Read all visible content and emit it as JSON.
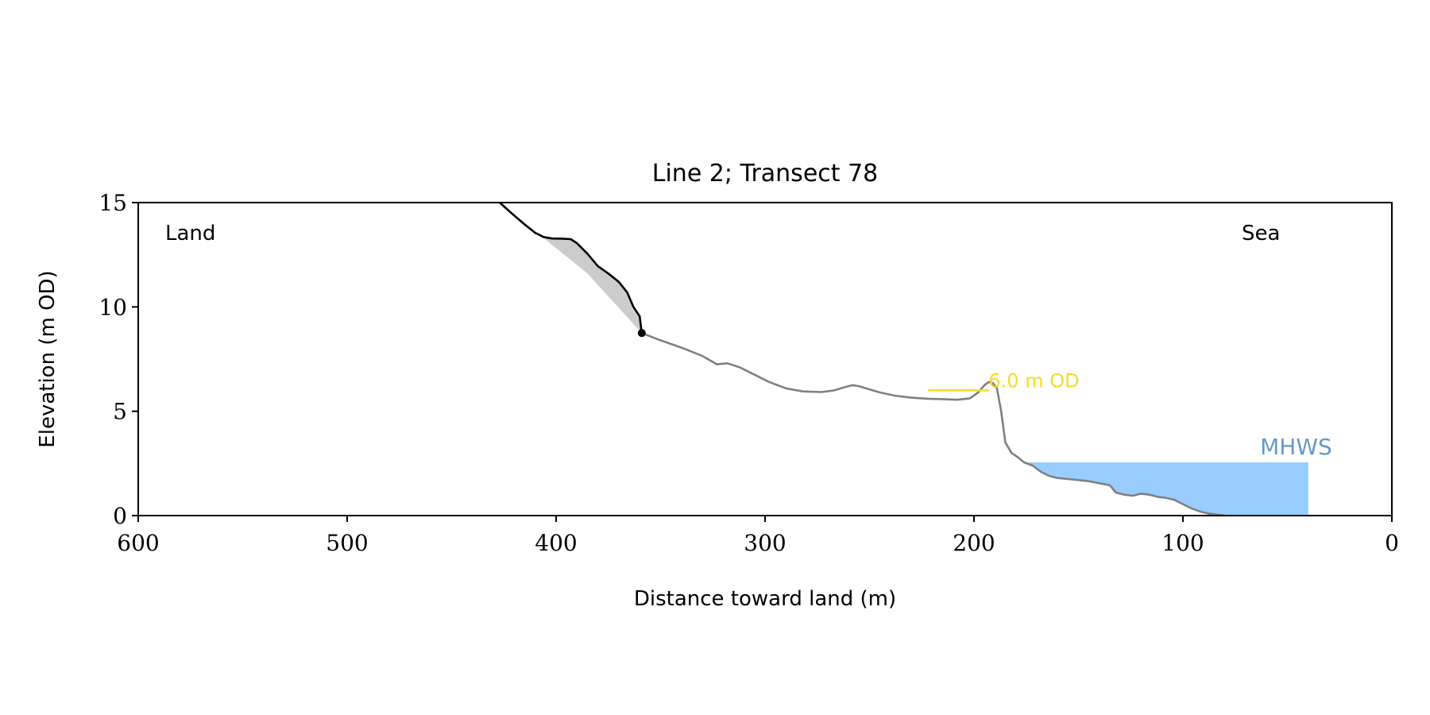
{
  "chart_data": {
    "type": "line",
    "title": "Line 2; Transect 78",
    "xlabel": "Distance toward land (m)",
    "ylabel": "Elevation (m OD)",
    "xlim": [
      600,
      0
    ],
    "ylim": [
      0,
      15
    ],
    "x_ticks": [
      600,
      500,
      400,
      300,
      200,
      100,
      0
    ],
    "x_tick_labels": [
      "600",
      "500",
      "400",
      "300",
      "200",
      "100",
      "0"
    ],
    "y_ticks": [
      0,
      5,
      10,
      15
    ],
    "y_tick_labels": [
      "0",
      "5",
      "10",
      "15"
    ],
    "grid": false,
    "annotations": {
      "land_label": "Land",
      "sea_label": "Sea",
      "contour_label": "6.0 m OD",
      "mhws_label": "MHWS"
    },
    "colors": {
      "profile": "#808080",
      "cliff": "#000000",
      "cliff_fill": "#cccccc",
      "contour": "#f5dc28",
      "mhws_fill": "#99ccff",
      "mhws_text": "#6699cc"
    },
    "mhws": {
      "elevation": 2.55,
      "x_start": 200,
      "x_end": 40
    },
    "contour_line": {
      "elevation": 6.0,
      "x_start": 222,
      "x_end": 193
    },
    "cliff_toe": {
      "x": 359,
      "y": 8.75
    },
    "cliff_profile": [
      [
        427,
        15.0
      ],
      [
        422,
        14.55
      ],
      [
        415,
        13.95
      ],
      [
        410,
        13.55
      ],
      [
        406,
        13.35
      ],
      [
        402,
        13.28
      ],
      [
        397,
        13.27
      ],
      [
        393,
        13.25
      ],
      [
        390,
        13.05
      ],
      [
        385,
        12.55
      ],
      [
        380,
        11.95
      ],
      [
        375,
        11.6
      ],
      [
        370,
        11.2
      ],
      [
        366,
        10.7
      ],
      [
        363,
        10.0
      ],
      [
        360,
        9.55
      ],
      [
        355,
        9.3
      ],
      [
        350,
        9.0
      ],
      [
        347,
        8.85
      ],
      [
        344,
        8.75
      ]
    ],
    "cliff_base": [
      [
        427,
        15.0
      ],
      [
        385,
        11.6
      ],
      [
        359,
        8.75
      ]
    ],
    "profile": [
      [
        359,
        8.75
      ],
      [
        350,
        8.4
      ],
      [
        340,
        8.05
      ],
      [
        330,
        7.65
      ],
      [
        323,
        7.25
      ],
      [
        318,
        7.3
      ],
      [
        312,
        7.1
      ],
      [
        305,
        6.75
      ],
      [
        298,
        6.4
      ],
      [
        290,
        6.1
      ],
      [
        282,
        5.95
      ],
      [
        273,
        5.92
      ],
      [
        267,
        6.0
      ],
      [
        262,
        6.15
      ],
      [
        258,
        6.25
      ],
      [
        255,
        6.2
      ],
      [
        250,
        6.05
      ],
      [
        245,
        5.9
      ],
      [
        238,
        5.75
      ],
      [
        230,
        5.65
      ],
      [
        222,
        5.6
      ],
      [
        215,
        5.58
      ],
      [
        208,
        5.55
      ],
      [
        202,
        5.62
      ],
      [
        198,
        5.9
      ],
      [
        195,
        6.25
      ],
      [
        193,
        6.4
      ],
      [
        191,
        6.35
      ],
      [
        189,
        6.1
      ],
      [
        187,
        5.0
      ],
      [
        185,
        3.5
      ],
      [
        182,
        3.0
      ],
      [
        179,
        2.8
      ],
      [
        176,
        2.55
      ],
      [
        172,
        2.4
      ],
      [
        168,
        2.1
      ],
      [
        164,
        1.9
      ],
      [
        160,
        1.8
      ],
      [
        155,
        1.75
      ],
      [
        150,
        1.7
      ],
      [
        145,
        1.65
      ],
      [
        140,
        1.55
      ],
      [
        135,
        1.45
      ],
      [
        132,
        1.1
      ],
      [
        128,
        1.0
      ],
      [
        124,
        0.95
      ],
      [
        120,
        1.05
      ],
      [
        116,
        1.0
      ],
      [
        112,
        0.9
      ],
      [
        108,
        0.85
      ],
      [
        104,
        0.75
      ],
      [
        100,
        0.55
      ],
      [
        96,
        0.35
      ],
      [
        92,
        0.2
      ],
      [
        88,
        0.1
      ],
      [
        84,
        0.05
      ],
      [
        80,
        0.0
      ]
    ]
  }
}
